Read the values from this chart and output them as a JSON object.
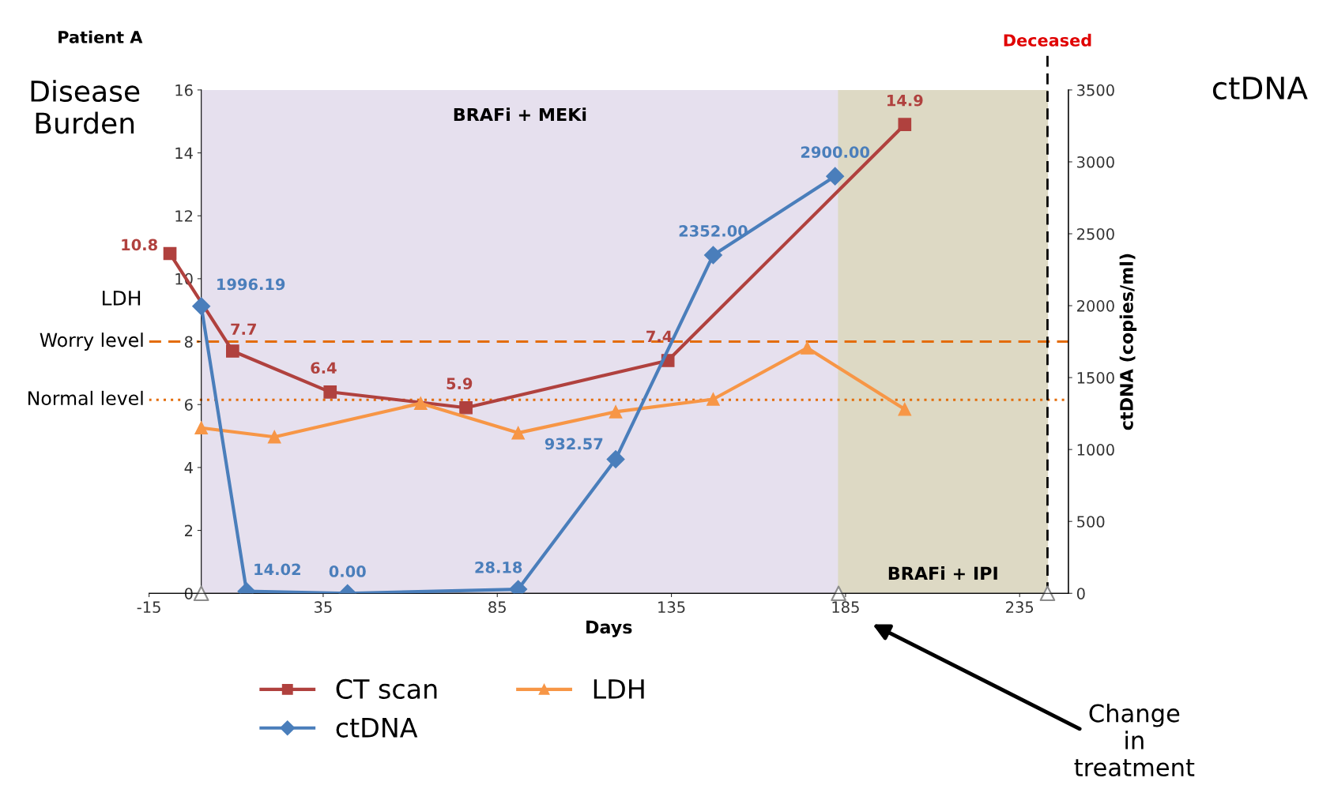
{
  "chart_data": {
    "type": "line",
    "title": "Patient A",
    "xlabel": "Days",
    "ylabel": "Disease\nBurden",
    "y2label": "ctDNA (copies/ml)",
    "xlim": [
      -15,
      249
    ],
    "xticks": [
      -15,
      35,
      85,
      135,
      185,
      235
    ],
    "ylim": [
      0,
      16
    ],
    "yticks": [
      0,
      2,
      4,
      6,
      8,
      10,
      12,
      14,
      16
    ],
    "y2lim": [
      0,
      3500
    ],
    "y2ticks": [
      0,
      500,
      1000,
      1500,
      2000,
      2500,
      3000,
      3500
    ],
    "grid": false,
    "legend": "bottom",
    "series": [
      {
        "name": "CT scan",
        "color": "#b0413e",
        "marker": "square",
        "x": [
          -9,
          9,
          37,
          76,
          134,
          202
        ],
        "values": [
          10.8,
          7.7,
          6.4,
          5.9,
          7.4,
          14.9
        ],
        "value_labels": [
          "10.8",
          "7.7",
          "6.4",
          "5.9",
          "7.4",
          "14.9"
        ]
      },
      {
        "name": "ctDNA",
        "color": "#4a7ebb",
        "marker": "diamond",
        "axis": "y2",
        "x": [
          0,
          13,
          42,
          91,
          119,
          147,
          182
        ],
        "values": [
          1996.19,
          14.02,
          0.0,
          28.18,
          932.57,
          2352.0,
          2900.0
        ],
        "value_labels": [
          "1996.19",
          "14.02",
          "0.00",
          "28.18",
          "932.57",
          "2352.00",
          "2900.00"
        ]
      },
      {
        "name": "LDH",
        "color": "#f79646",
        "marker": "triangle",
        "x": [
          0,
          21,
          63,
          91,
          119,
          147,
          174,
          202
        ],
        "values": [
          5.26,
          4.97,
          6.04,
          5.1,
          5.77,
          6.17,
          7.8,
          5.85
        ]
      },
      {
        "type": "scatter",
        "color": "#8c8c8c",
        "marker": "triangle",
        "x": [
          0,
          183,
          243
        ],
        "values": [
          0,
          0,
          0
        ]
      }
    ],
    "ref_lines": [
      {
        "axis": "y",
        "value": 8,
        "label": "Worry level",
        "color": "#e36c09",
        "line_style": "dashed"
      },
      {
        "axis": "y",
        "value": 6.15,
        "label": "Normal level",
        "color": "#e36c09",
        "line_style": "dotted"
      },
      {
        "axis": "x",
        "value": 243,
        "label": "Deceased",
        "color": "#000000",
        "line_style": "dashed"
      }
    ],
    "bands": [
      {
        "axis": "x",
        "from": 0,
        "to": 183,
        "label": "BRAFi + MEKi",
        "color": "#e6e0ee"
      },
      {
        "axis": "x",
        "from": 183,
        "to": 243,
        "label": "BRAFi + IPI",
        "color": "#ddd9c4"
      }
    ],
    "annotations": [
      "LDH",
      "ctDNA",
      "Change\nin\ntreatment"
    ]
  }
}
